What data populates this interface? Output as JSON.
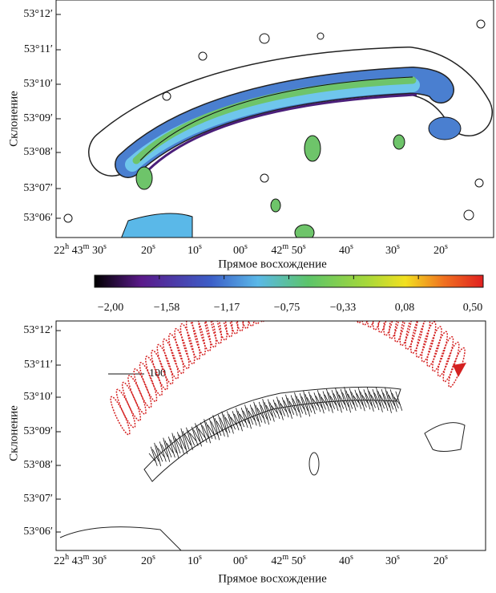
{
  "top_panel": {
    "ylabel": "Склонение",
    "yticks": [
      "53°12′",
      "53°11′",
      "53°10′",
      "53°09′",
      "53°08′",
      "53°07′",
      "53°06′"
    ],
    "xticks": [
      [
        "22",
        "h",
        " 43",
        "m",
        " 30",
        "s"
      ],
      [
        "20",
        "s"
      ],
      [
        "10",
        "s"
      ],
      [
        "00",
        "s"
      ],
      [
        "42",
        "m",
        " 50",
        "s"
      ],
      [
        "40",
        "s"
      ],
      [
        "30",
        "s"
      ],
      [
        "20",
        "s"
      ]
    ],
    "xlabel": "Прямое восхождение"
  },
  "colorbar": {
    "ticks": [
      "−2,00",
      "−1,58",
      "−1,17",
      "−0,75",
      "−0,33",
      "0,08",
      "0,50"
    ]
  },
  "bottom_panel": {
    "ylabel": "Склонение",
    "yticks": [
      "53°12′",
      "53°11′",
      "53°10′",
      "53°09′",
      "53°08′",
      "53°07′",
      "53°06′"
    ],
    "xticks": [
      [
        "22",
        "h",
        " 43",
        "m",
        " 30",
        "s"
      ],
      [
        "20",
        "s"
      ],
      [
        "10",
        "s"
      ],
      [
        "00",
        "s"
      ],
      [
        "42",
        "m",
        " 50",
        "s"
      ],
      [
        "40",
        "s"
      ],
      [
        "30",
        "s"
      ],
      [
        "20",
        "s"
      ]
    ],
    "xlabel": "Прямое восхождение",
    "scale_label": "100"
  }
}
